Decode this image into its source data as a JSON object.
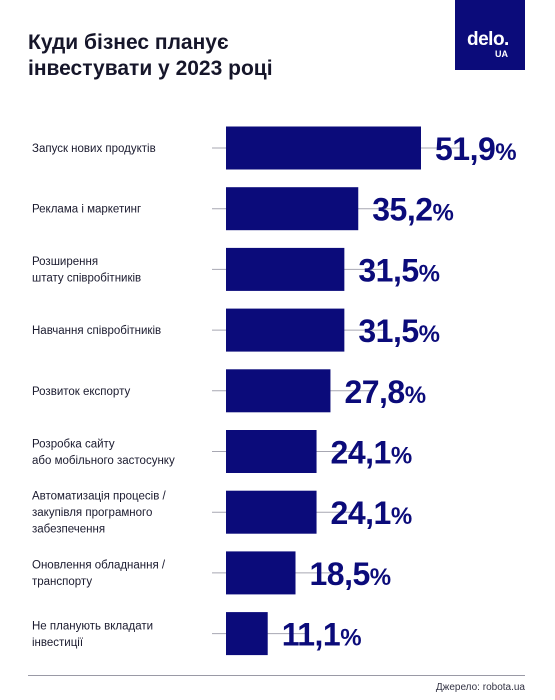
{
  "header": {
    "title": "Куди бізнес планує інвестувати у 2023 році"
  },
  "logo": {
    "word": "delo.",
    "sub": "UA"
  },
  "footer": {
    "source": "Джерело: robota.ua"
  },
  "colors": {
    "bar": "#0b0b7a",
    "value_text": "#0b0b7a",
    "leader_line": "#a7a7b2"
  },
  "chart_data": {
    "type": "bar",
    "orientation": "horizontal",
    "categories": [
      [
        "Запуск нових продуктів"
      ],
      [
        "Реклама і маркетинг"
      ],
      [
        "Розширення",
        "штату співробітників"
      ],
      [
        "Навчання співробітників"
      ],
      [
        "Розвиток експорту"
      ],
      [
        "Розробка сайту",
        "або мобільного застосунку"
      ],
      [
        "Автоматизація процесів /",
        "закупівля програмного",
        "забезпечення"
      ],
      [
        "Оновлення обладнання /",
        "транспорту"
      ],
      [
        "Не планують вкладати",
        "інвестиції"
      ]
    ],
    "values": [
      51.9,
      35.2,
      31.5,
      31.5,
      27.8,
      24.1,
      24.1,
      18.5,
      11.1
    ],
    "value_labels": [
      "51,9",
      "35,2",
      "31,5",
      "31,5",
      "27,8",
      "24,1",
      "24,1",
      "18,5",
      "11,1"
    ],
    "unit": "%",
    "xlim": [
      0,
      51.9
    ]
  }
}
